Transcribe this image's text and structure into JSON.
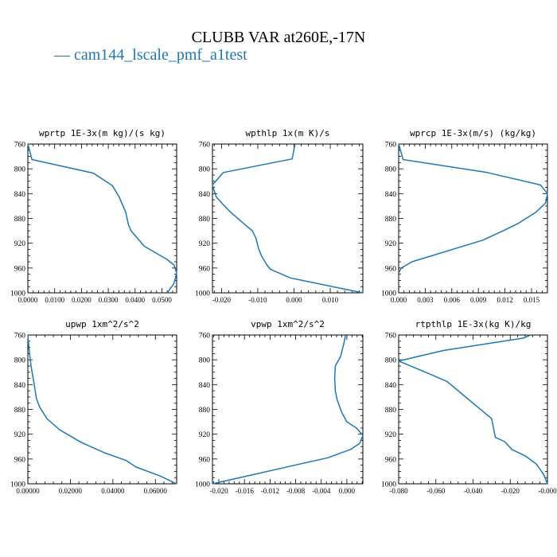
{
  "figure": {
    "title": "CLUBB VAR at260E,-17N",
    "legend_text": "— cam144_lscale_pmf_a1test",
    "line_color": "#1f77b4"
  },
  "chart_data": [
    {
      "type": "line",
      "title": "wprtp  1E-3x(m kg)/(s kg)",
      "ylim": [
        760,
        1000
      ],
      "y_reversed": true,
      "xlim": [
        0.0,
        0.0555
      ],
      "xticks": [
        0.0,
        0.01,
        0.02,
        0.03,
        0.04,
        0.05
      ],
      "xticklabels": [
        "0.0000",
        "0.0100",
        "0.0200",
        "0.0300",
        "0.0400",
        "0.0500"
      ],
      "yticks": [
        760,
        800,
        840,
        880,
        920,
        960,
        1000
      ],
      "yticklabels": [
        "760",
        "800",
        "840",
        "880",
        "920",
        "960",
        "1000"
      ],
      "series": [
        {
          "x": [
            0.0,
            0.0015,
            0.0245,
            0.0315,
            0.034,
            0.0355,
            0.0365,
            0.037,
            0.0375,
            0.0385,
            0.0405,
            0.0435,
            0.0475,
            0.0515,
            0.0545,
            0.0555,
            0.0545,
            0.052
          ],
          "y": [
            758,
            785,
            807,
            827,
            845,
            860,
            870,
            880,
            890,
            900,
            910,
            925,
            935,
            945,
            955,
            968,
            985,
            1000
          ]
        }
      ]
    },
    {
      "type": "line",
      "title": "wpthlp  1x(m K)/s",
      "ylim": [
        760,
        1000
      ],
      "y_reversed": true,
      "xlim": [
        -0.0225,
        0.019
      ],
      "xticks": [
        -0.02,
        -0.01,
        0.0,
        0.01
      ],
      "xticklabels": [
        "-0.020",
        "-0.010",
        "0.000",
        "0.010"
      ],
      "yticks": [
        760,
        800,
        840,
        880,
        920,
        960,
        1000
      ],
      "yticklabels": [
        "760",
        "800",
        "840",
        "880",
        "920",
        "960",
        "1000"
      ],
      "series": [
        {
          "x": [
            0.0003,
            0.0,
            -0.0005,
            -0.0195,
            -0.0225,
            -0.0215,
            -0.0195,
            -0.0175,
            -0.0145,
            -0.0115,
            -0.0105,
            -0.0098,
            -0.009,
            -0.0075,
            -0.0065,
            -0.001,
            0.019
          ],
          "y": [
            758,
            768,
            784,
            806,
            826,
            845,
            858,
            870,
            885,
            900,
            912,
            928,
            940,
            955,
            962,
            976,
            1000
          ]
        }
      ]
    },
    {
      "type": "line",
      "title": "wprcp  1E-3x(m/s) (kg/kg)",
      "ylim": [
        760,
        1000
      ],
      "y_reversed": true,
      "xlim": [
        0.0,
        0.0168
      ],
      "xticks": [
        0.0,
        0.003,
        0.006,
        0.009,
        0.012,
        0.015
      ],
      "xticklabels": [
        "0.000",
        "0.003",
        "0.006",
        "0.009",
        "0.012",
        "0.015"
      ],
      "yticks": [
        760,
        800,
        840,
        880,
        920,
        960,
        1000
      ],
      "yticklabels": [
        "760",
        "800",
        "840",
        "880",
        "920",
        "960",
        "1000"
      ],
      "series": [
        {
          "x": [
            0.0,
            0.0005,
            0.01,
            0.016,
            0.0168,
            0.0166,
            0.0155,
            0.0135,
            0.0118,
            0.0095,
            0.0015,
            0.0003,
            0.0
          ],
          "y": [
            758,
            785,
            806,
            826,
            840,
            855,
            870,
            888,
            900,
            915,
            950,
            960,
            968
          ]
        }
      ]
    },
    {
      "type": "line",
      "title": "upwp  1xm^2/s^2",
      "ylim": [
        760,
        1000
      ],
      "y_reversed": true,
      "xlim": [
        0.0,
        0.07
      ],
      "xticks": [
        0.0,
        0.02,
        0.04,
        0.06
      ],
      "xticklabels": [
        "0.00000",
        "0.02000",
        "0.04000",
        "0.06000"
      ],
      "yticks": [
        760,
        800,
        840,
        880,
        920,
        960,
        1000
      ],
      "yticklabels": [
        "760",
        "800",
        "840",
        "880",
        "920",
        "960",
        "1000"
      ],
      "series": [
        {
          "x": [
            0.0,
            0.0005,
            0.0015,
            0.003,
            0.004,
            0.0055,
            0.009,
            0.015,
            0.025,
            0.036,
            0.046,
            0.051,
            0.062,
            0.07
          ],
          "y": [
            758,
            780,
            810,
            840,
            862,
            876,
            895,
            913,
            933,
            950,
            962,
            973,
            987,
            1000
          ]
        }
      ]
    },
    {
      "type": "line",
      "title": "vpwp  1xm^2/s^2",
      "ylim": [
        760,
        1000
      ],
      "y_reversed": true,
      "xlim": [
        -0.021,
        0.0025
      ],
      "xticks": [
        -0.02,
        -0.016,
        -0.012,
        -0.008,
        -0.004,
        0.0
      ],
      "xticklabels": [
        "-0.020",
        "-0.016",
        "-0.012",
        "-0.008",
        "-0.004",
        "0.000"
      ],
      "yticks": [
        760,
        800,
        840,
        880,
        920,
        960,
        1000
      ],
      "yticklabels": [
        "760",
        "800",
        "840",
        "880",
        "920",
        "960",
        "1000"
      ],
      "series": [
        {
          "x": [
            -0.0002,
            -0.0005,
            -0.001,
            -0.0018,
            -0.0019,
            -0.0018,
            -0.0015,
            -0.0008,
            0.0,
            0.0015,
            0.0025,
            0.002,
            0.0005,
            -0.003,
            -0.009,
            -0.015,
            -0.021
          ],
          "y": [
            758,
            775,
            795,
            810,
            830,
            850,
            865,
            885,
            900,
            910,
            922,
            935,
            945,
            958,
            972,
            986,
            1000
          ]
        }
      ]
    },
    {
      "type": "line",
      "title": "rtpthlp  1E-3x(kg K)/kg",
      "ylim": [
        760,
        1000
      ],
      "y_reversed": true,
      "xlim": [
        -0.08,
        0.0
      ],
      "xticks": [
        -0.08,
        -0.06,
        -0.04,
        -0.02,
        0.0
      ],
      "xticklabels": [
        "-0.080",
        "-0.060",
        "-0.040",
        "-0.020",
        "-0.000"
      ],
      "yticks": [
        760,
        800,
        840,
        880,
        920,
        960,
        1000
      ],
      "yticklabels": [
        "760",
        "800",
        "840",
        "880",
        "920",
        "960",
        "1000"
      ],
      "series": [
        {
          "x": [
            -0.009,
            -0.013,
            -0.056,
            -0.08,
            -0.064,
            -0.054,
            -0.046,
            -0.038,
            -0.03,
            -0.029,
            -0.028,
            -0.023,
            -0.019,
            -0.012,
            -0.006,
            -0.002,
            0.0
          ],
          "y": [
            757,
            765,
            785,
            802,
            822,
            835,
            855,
            875,
            895,
            910,
            925,
            932,
            945,
            955,
            968,
            985,
            1000
          ]
        }
      ]
    }
  ]
}
